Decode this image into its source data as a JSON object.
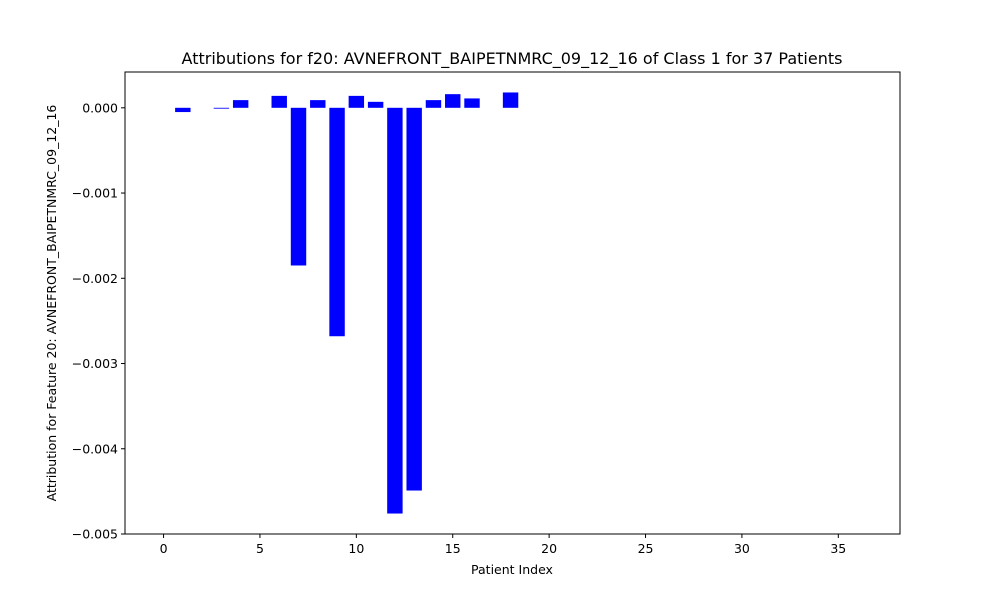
{
  "chart_data": {
    "type": "bar",
    "title": "Attributions for f20: AVNEFRONT_BAIPETNMRC_09_12_16 of Class 1 for 37 Patients",
    "xlabel": "Patient Index",
    "ylabel": "Attribution for Feature 20: AVNEFRONT_BAIPETNMRC_09_12_16",
    "xlim": [
      -2,
      38.2
    ],
    "ylim": [
      -0.005,
      0.00042
    ],
    "xticks": [
      0,
      5,
      10,
      15,
      20,
      25,
      30,
      35
    ],
    "xtick_labels": [
      "0",
      "5",
      "10",
      "15",
      "20",
      "25",
      "30",
      "35"
    ],
    "yticks": [
      0.0,
      -0.001,
      -0.002,
      -0.003,
      -0.004,
      -0.005
    ],
    "ytick_labels": [
      "0.000",
      "−0.001",
      "−0.002",
      "−0.003",
      "−0.004",
      "−0.005"
    ],
    "bar_color": "#0000ff",
    "grid": false,
    "x": [
      0,
      1,
      2,
      3,
      4,
      5,
      6,
      7,
      8,
      9,
      10,
      11,
      12,
      13,
      14,
      15,
      16,
      17,
      18,
      19,
      20,
      21,
      22,
      23,
      24,
      25,
      26,
      27,
      28,
      29,
      30,
      31,
      32,
      33,
      34,
      35,
      36
    ],
    "values": [
      0,
      -5e-05,
      0,
      -1e-05,
      9e-05,
      0,
      0.00014,
      -0.00185,
      9e-05,
      -0.00268,
      0.00014,
      7e-05,
      -0.00476,
      -0.00449,
      9e-05,
      0.00016,
      0.00011,
      0,
      0.00018,
      0,
      0,
      0,
      0,
      0,
      0,
      0,
      0,
      0,
      0,
      0,
      0,
      0,
      0,
      0,
      0,
      0,
      0
    ]
  }
}
